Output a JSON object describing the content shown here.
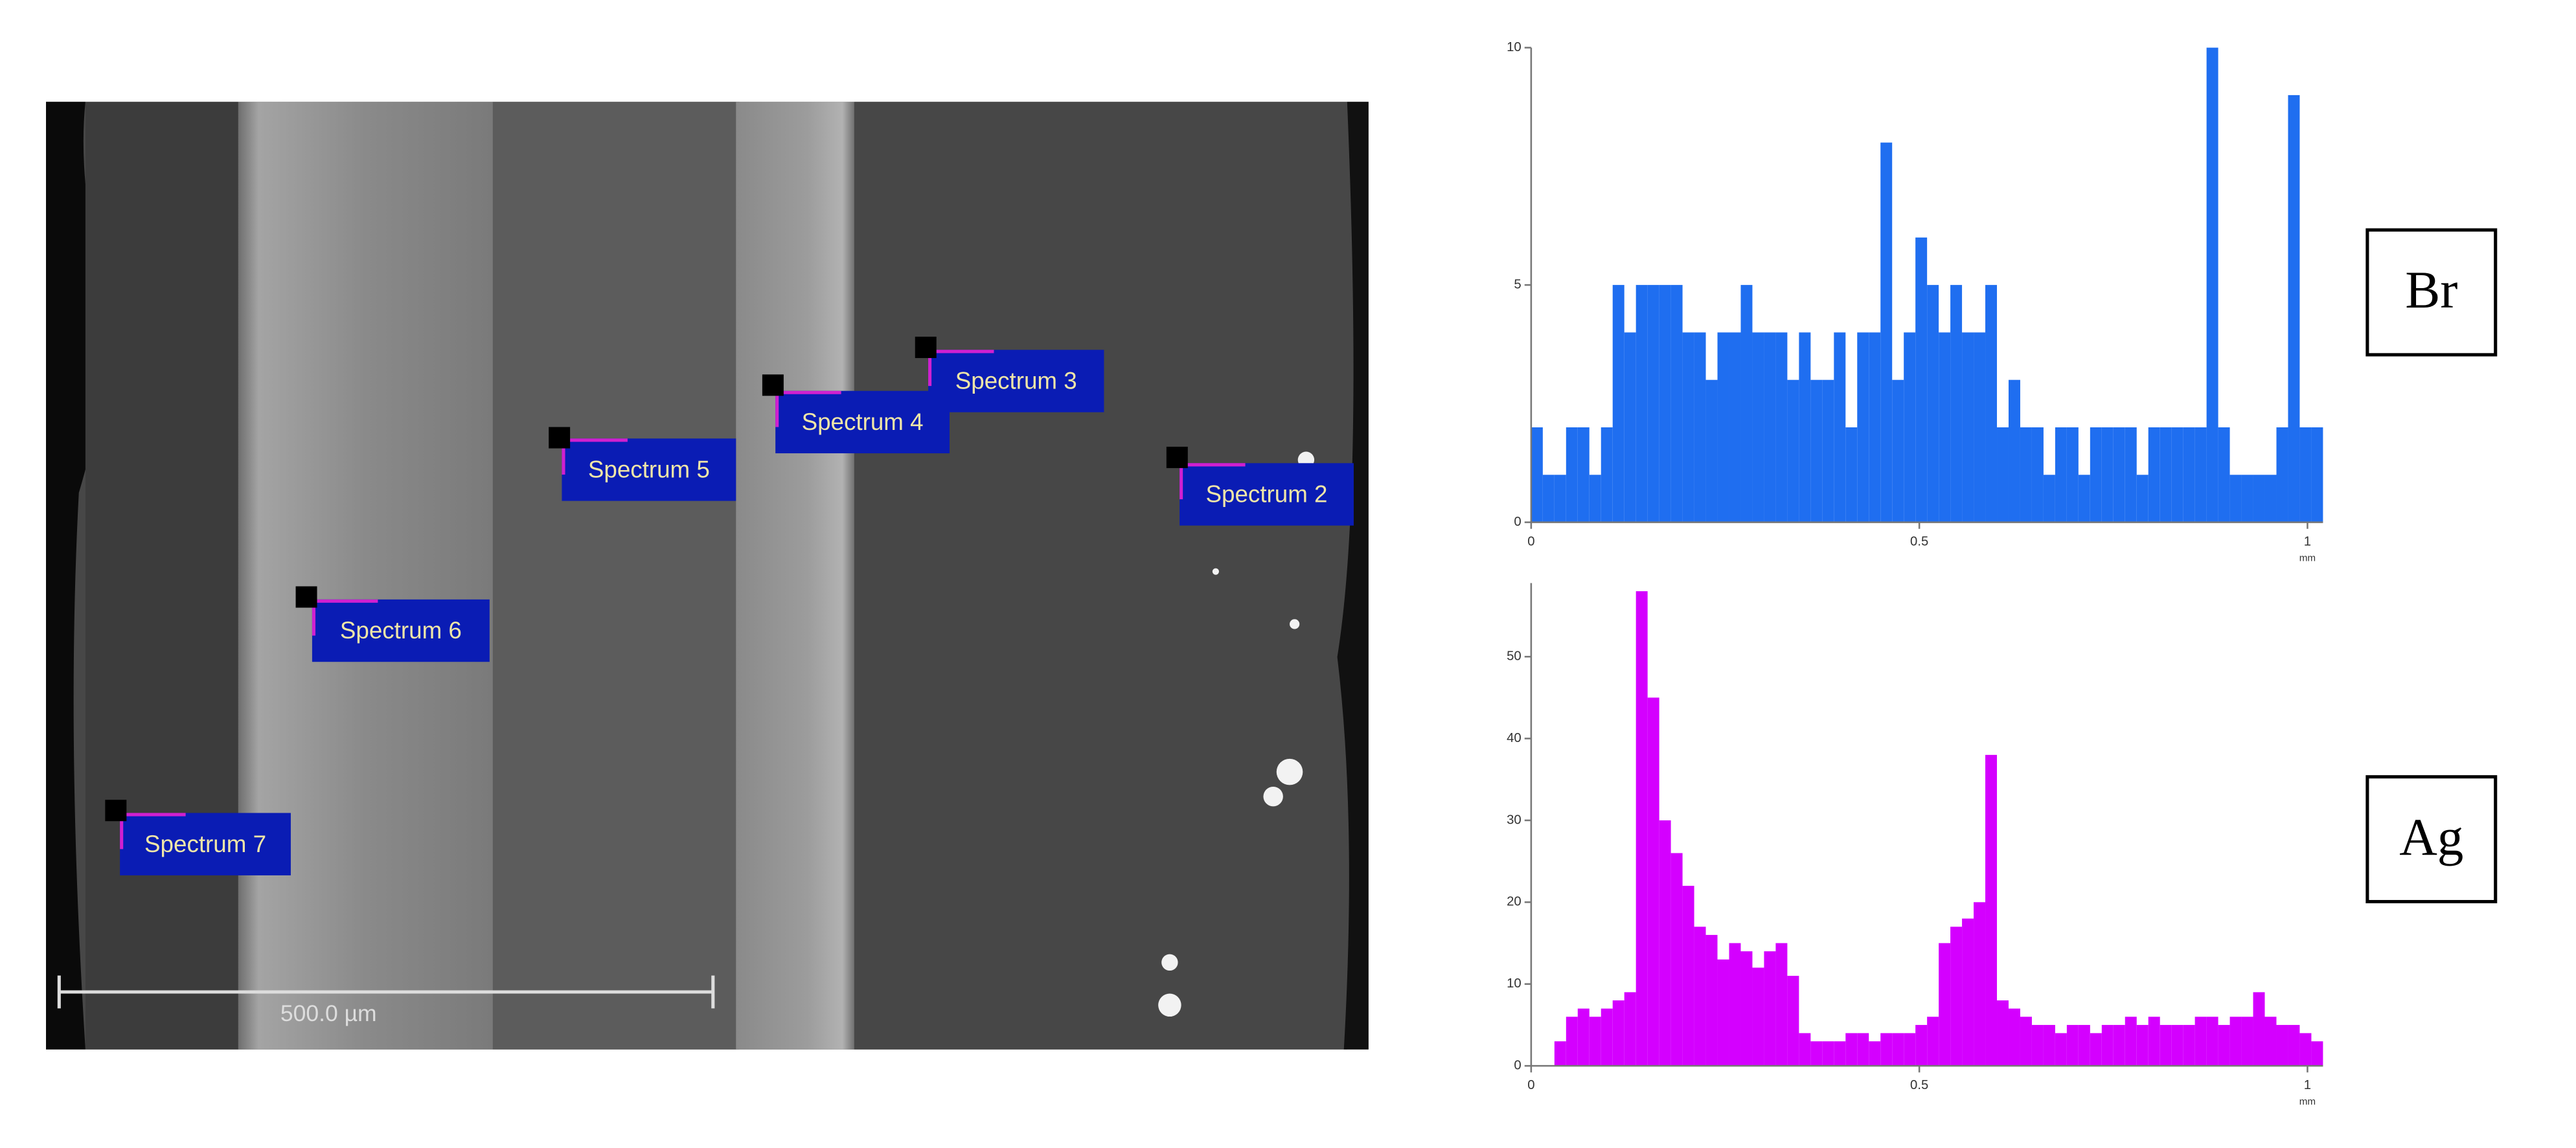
{
  "image": {
    "labels": [
      "Spectrum 3",
      "Spectrum 4",
      "Spectrum 5",
      "Spectrum 2",
      "Spectrum 6",
      "Spectrum 7"
    ],
    "scale_bar": "500.0 µm"
  },
  "chart_data": [
    {
      "type": "histogram",
      "title": "Br",
      "xlabel": "mm",
      "color": "#1f6ef0",
      "bins": [
        0,
        0.015,
        0.03,
        0.045,
        0.06,
        0.075,
        0.09,
        0.105,
        0.12,
        0.135,
        0.15,
        0.165,
        0.18,
        0.195,
        0.21,
        0.225,
        0.24,
        0.255,
        0.27,
        0.285,
        0.3,
        0.315,
        0.33,
        0.345,
        0.36,
        0.375,
        0.39,
        0.405,
        0.42,
        0.435,
        0.45,
        0.465,
        0.48,
        0.495,
        0.51,
        0.525,
        0.54,
        0.555,
        0.57,
        0.585,
        0.6,
        0.615,
        0.63,
        0.645,
        0.66,
        0.675,
        0.69,
        0.705,
        0.72,
        0.735,
        0.75,
        0.765,
        0.78,
        0.795,
        0.81,
        0.825,
        0.84,
        0.855,
        0.87,
        0.885,
        0.9,
        0.915,
        0.93,
        0.945,
        0.96,
        0.975,
        0.99,
        1.005,
        1.02
      ],
      "values": [
        2,
        1,
        1,
        2,
        2,
        1,
        2,
        5,
        4,
        5,
        5,
        5,
        5,
        4,
        4,
        3,
        4,
        4,
        5,
        4,
        4,
        4,
        3,
        4,
        3,
        3,
        4,
        2,
        4,
        4,
        8,
        3,
        4,
        6,
        5,
        4,
        5,
        4,
        4,
        5,
        2,
        3,
        2,
        2,
        1,
        2,
        2,
        1,
        2,
        2,
        2,
        2,
        1,
        2,
        2,
        2,
        2,
        2,
        10,
        2,
        1,
        1,
        1,
        1,
        2,
        9,
        2,
        2
      ],
      "xlim": [
        0,
        1.02
      ],
      "ylim": [
        0,
        10
      ],
      "xticks": [
        0,
        0.5,
        1
      ],
      "yticks": [
        0,
        5,
        10
      ]
    },
    {
      "type": "histogram",
      "title": "Ag",
      "xlabel": "mm",
      "color": "#d400ff",
      "bins": [
        0,
        0.015,
        0.03,
        0.045,
        0.06,
        0.075,
        0.09,
        0.105,
        0.12,
        0.135,
        0.15,
        0.165,
        0.18,
        0.195,
        0.21,
        0.225,
        0.24,
        0.255,
        0.27,
        0.285,
        0.3,
        0.315,
        0.33,
        0.345,
        0.36,
        0.375,
        0.39,
        0.405,
        0.42,
        0.435,
        0.45,
        0.465,
        0.48,
        0.495,
        0.51,
        0.525,
        0.54,
        0.555,
        0.57,
        0.585,
        0.6,
        0.615,
        0.63,
        0.645,
        0.66,
        0.675,
        0.69,
        0.705,
        0.72,
        0.735,
        0.75,
        0.765,
        0.78,
        0.795,
        0.81,
        0.825,
        0.84,
        0.855,
        0.87,
        0.885,
        0.9,
        0.915,
        0.93,
        0.945,
        0.96,
        0.975,
        0.99,
        1.005,
        1.02
      ],
      "values": [
        0,
        0,
        3,
        6,
        7,
        6,
        7,
        8,
        9,
        58,
        45,
        30,
        26,
        22,
        17,
        16,
        13,
        15,
        14,
        12,
        14,
        15,
        11,
        4,
        3,
        3,
        3,
        4,
        4,
        3,
        4,
        4,
        4,
        5,
        6,
        15,
        17,
        18,
        20,
        38,
        8,
        7,
        6,
        5,
        5,
        4,
        5,
        5,
        4,
        5,
        5,
        6,
        5,
        6,
        5,
        5,
        5,
        6,
        6,
        5,
        6,
        6,
        9,
        6,
        5,
        5,
        4,
        3
      ],
      "xlim": [
        0,
        1.02
      ],
      "ylim": [
        0,
        59
      ],
      "xticks": [
        0,
        0.5,
        1
      ],
      "yticks": [
        0,
        10,
        20,
        30,
        40,
        50
      ]
    }
  ]
}
